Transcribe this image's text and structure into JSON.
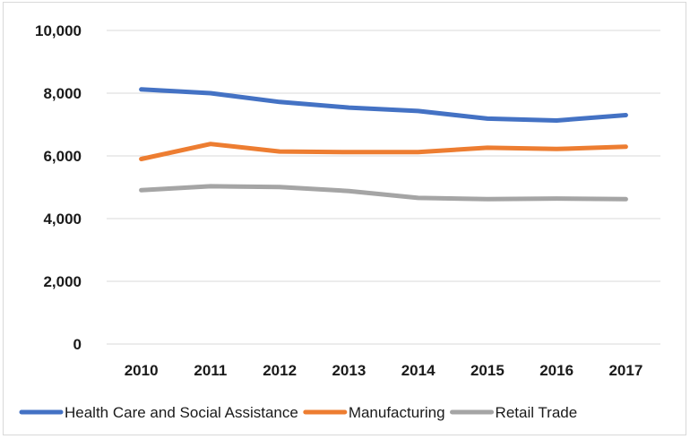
{
  "chart_data": {
    "type": "line",
    "title": "",
    "xlabel": "",
    "ylabel": "",
    "categories": [
      "2010",
      "2011",
      "2012",
      "2013",
      "2014",
      "2015",
      "2016",
      "2017"
    ],
    "ylim": [
      0,
      10000
    ],
    "y_ticks": [
      0,
      2000,
      4000,
      6000,
      8000,
      10000
    ],
    "y_tick_labels": [
      "0",
      "2,000",
      "4,000",
      "6,000",
      "8,000",
      "10,000"
    ],
    "grid": true,
    "legend_position": "bottom",
    "series": [
      {
        "name": "Health Care and Social Assistance",
        "color": "#4472c4",
        "values": [
          8120,
          8000,
          7720,
          7540,
          7430,
          7190,
          7130,
          7300
        ]
      },
      {
        "name": "Manufacturing",
        "color": "#ed7d31",
        "values": [
          5900,
          6380,
          6140,
          6120,
          6120,
          6260,
          6220,
          6290
        ]
      },
      {
        "name": "Retail Trade",
        "color": "#a5a5a5",
        "values": [
          4910,
          5030,
          5010,
          4880,
          4660,
          4620,
          4640,
          4620
        ]
      }
    ]
  }
}
